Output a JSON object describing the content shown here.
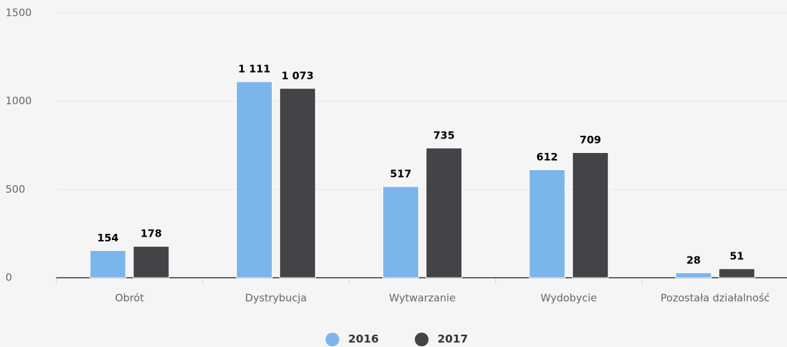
{
  "chart_data": {
    "type": "bar",
    "categories": [
      "Obrót",
      "Dystrybucja",
      "Wytwarzanie",
      "Wydobycie",
      "Pozostała działalność"
    ],
    "series": [
      {
        "name": "2016",
        "color": "#7cb5ec",
        "values": [
          154,
          1111,
          517,
          612,
          28
        ],
        "value_labels": [
          "154",
          "1 111",
          "517",
          "612",
          "28"
        ]
      },
      {
        "name": "2017",
        "color": "#434348",
        "values": [
          178,
          1073,
          735,
          709,
          51
        ],
        "value_labels": [
          "178",
          "1 073",
          "735",
          "709",
          "51"
        ]
      }
    ],
    "ylim": [
      0,
      1500
    ],
    "yticks": [
      0,
      500,
      1000,
      1500
    ],
    "grid": true,
    "legend": "bottom"
  }
}
